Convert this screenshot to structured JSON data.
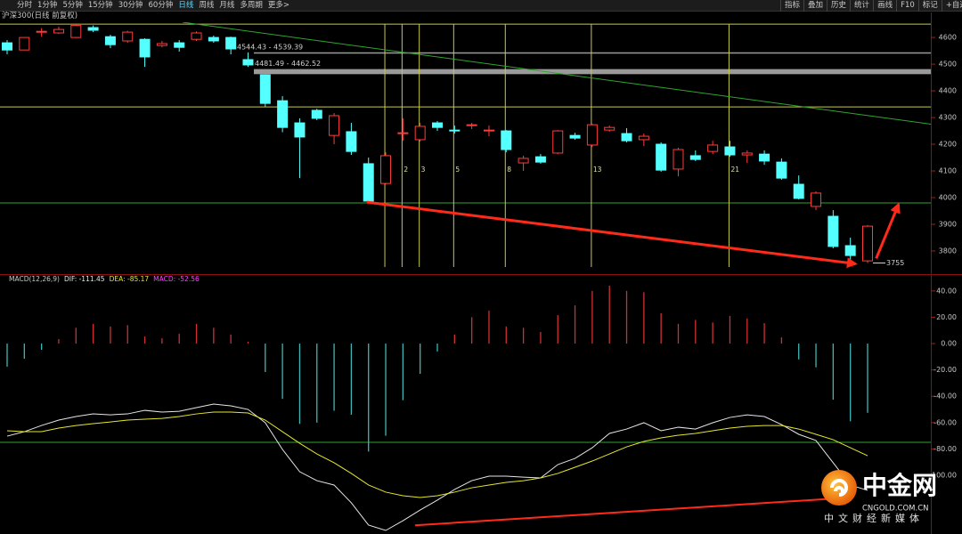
{
  "toolbar": {
    "tabs": [
      "分时",
      "1分钟",
      "5分钟",
      "15分钟",
      "30分钟",
      "60分钟",
      "日线",
      "周线",
      "月线",
      "多周期",
      "更多>"
    ],
    "active_tab": 6,
    "tools": [
      "指标",
      "叠加",
      "历史",
      "统计",
      "画线",
      "F10",
      "标记",
      "+自选",
      "返回"
    ]
  },
  "chart_data": [
    {
      "type": "candlestick",
      "title": "沪深300(日线 前复权)",
      "candles": {
        "open": [
          4580,
          4553,
          4620,
          4617,
          4600,
          4637,
          4603,
          4587,
          4593,
          4570,
          4580,
          4593,
          4600,
          4600,
          4517,
          4460,
          4363,
          4280,
          4327,
          4233,
          4247,
          4127,
          4053,
          4240,
          4217,
          4280,
          4253,
          4270,
          4250,
          4250,
          4130,
          4153,
          4167,
          4233,
          4197,
          4253,
          4240,
          4217,
          4200,
          4107,
          4157,
          4173,
          4190,
          4160,
          4163,
          4133,
          4050,
          3967,
          3930,
          3820,
          3763
        ],
        "high": [
          4590,
          4600,
          4635,
          4640,
          4650,
          4645,
          4610,
          4625,
          4597,
          4587,
          4590,
          4623,
          4607,
          4603,
          4544,
          4462,
          4380,
          4297,
          4333,
          4317,
          4280,
          4150,
          4170,
          4297,
          4280,
          4287,
          4270,
          4280,
          4270,
          4253,
          4157,
          4163,
          4253,
          4243,
          4277,
          4270,
          4260,
          4240,
          4207,
          4187,
          4177,
          4213,
          4213,
          4177,
          4177,
          4147,
          4083,
          4023,
          3953,
          3850,
          3897
        ],
        "low": [
          4537,
          4553,
          4603,
          4613,
          4598,
          4620,
          4560,
          4580,
          4490,
          4563,
          4547,
          4587,
          4580,
          4537,
          4490,
          4340,
          4245,
          4073,
          4290,
          4200,
          4160,
          3983,
          4050,
          4213,
          4210,
          4250,
          4240,
          4257,
          4230,
          4170,
          4100,
          4127,
          4163,
          4217,
          4190,
          4247,
          4207,
          4193,
          4097,
          4080,
          4137,
          4163,
          4153,
          4130,
          4123,
          4067,
          3993,
          3953,
          3810,
          3757.09,
          3755
        ],
        "close": [
          4553,
          4600,
          4623,
          4630,
          4645,
          4627,
          4573,
          4620,
          4527,
          4577,
          4563,
          4617,
          4587,
          4557,
          4497,
          4353,
          4263,
          4227,
          4297,
          4307,
          4173,
          3987,
          4157,
          4243,
          4267,
          4263,
          4250,
          4273,
          4253,
          4180,
          4147,
          4133,
          4250,
          4223,
          4273,
          4263,
          4213,
          4230,
          4103,
          4180,
          4143,
          4197,
          4160,
          4167,
          4137,
          4073,
          3997,
          4017,
          3817,
          3783,
          3893
        ]
      },
      "up_color": "#ff3c3c",
      "down_color": "#54ffff",
      "ylim": [
        3740,
        4657
      ],
      "yticks": [
        3800,
        3900,
        4000,
        4100,
        4200,
        4300,
        4400,
        4500,
        4600
      ],
      "gaps": [
        {
          "label": "4544.43 - 4539.39",
          "top": 4544.43,
          "bottom": 4539.39,
          "color": "#9a9a9a"
        },
        {
          "label": "4481.49 - 4462.52",
          "top": 4481.49,
          "bottom": 4462.52,
          "color": "#9a9a9a"
        }
      ],
      "horizontal_lines": [
        {
          "value": 4650,
          "color": "#c8c84a"
        },
        {
          "value": 4340,
          "color": "#c8c84a"
        },
        {
          "value": 3980,
          "color": "#2fa52f"
        }
      ],
      "trend_lines": [
        {
          "color": "#2fa52f",
          "width": 1,
          "arrow": false,
          "points": [
            [
              10.2,
              4657
            ],
            [
              53.7,
              4275
            ]
          ]
        },
        {
          "color": "#ff2a1a",
          "width": 3,
          "arrow": true,
          "points": [
            [
              20.9,
              3983
            ],
            [
              49.3,
              3752
            ]
          ]
        },
        {
          "color": "#ff2a1a",
          "width": 3,
          "arrow": true,
          "points": [
            [
              50.5,
              3772
            ],
            [
              51.8,
              3975
            ]
          ]
        }
      ],
      "fibonacci": {
        "labels": [
          1,
          2,
          3,
          5,
          8,
          13,
          21
        ],
        "color": "#c8c84a"
      }
    },
    {
      "type": "macd",
      "title": "MACD(12,26,9)",
      "histogram": {
        "name": "MACD: -52.56",
        "color": "#ff40ff",
        "positive_color": "#d03030",
        "negative_color": "#3fb7b7",
        "values": [
          -17.6,
          -11.5,
          -4.7,
          3.4,
          12,
          15,
          13,
          14,
          5.4,
          4,
          7.4,
          15,
          12,
          6.8,
          1.4,
          -21.6,
          -42,
          -61,
          -60,
          -51,
          -54,
          -82,
          -70,
          -43,
          -23,
          -6,
          6.8,
          20,
          25,
          13,
          12,
          8.8,
          21.6,
          29,
          40,
          44,
          40,
          39,
          23,
          15,
          18,
          16,
          21,
          19,
          15.5,
          4.7,
          -12,
          -18,
          -42.6,
          -59,
          -52.56
        ]
      },
      "series": [
        {
          "name": "DIF: -111.45",
          "color": "#e6e6e6",
          "values": [
            -70.3,
            -66.9,
            -62.2,
            -58.1,
            -55.4,
            -53.4,
            -54.1,
            -53.4,
            -50.7,
            -52.0,
            -51.4,
            -48.6,
            -45.9,
            -47.3,
            -50.0,
            -60.1,
            -80.4,
            -97.3,
            -104.1,
            -107.4,
            -120.9,
            -137.8,
            -141.9,
            -134.5,
            -126.4,
            -118.9,
            -110.8,
            -104.1,
            -100.7,
            -100.7,
            -101.4,
            -102.0,
            -91.9,
            -87.2,
            -79.1,
            -68.2,
            -64.9,
            -60.1,
            -66.2,
            -63.5,
            -64.9,
            -60.1,
            -56.1,
            -54.1,
            -55.4,
            -61.5,
            -68.9,
            -73.6,
            -90.5,
            -107.4,
            -111.45
          ]
        },
        {
          "name": "DEA: -85.17",
          "color": "#e6e62e",
          "values": [
            -66.2,
            -66.9,
            -66.9,
            -64.2,
            -62.2,
            -60.8,
            -59.5,
            -58.1,
            -57.4,
            -56.8,
            -55.4,
            -53.4,
            -52.0,
            -52.0,
            -52.7,
            -58.1,
            -66.9,
            -75.7,
            -83.8,
            -90.5,
            -98.6,
            -107.4,
            -112.8,
            -115.5,
            -116.9,
            -115.5,
            -112.8,
            -109.5,
            -107.4,
            -105.4,
            -104.1,
            -102.0,
            -98.6,
            -93.9,
            -89.2,
            -83.8,
            -78.4,
            -74.3,
            -71.6,
            -69.6,
            -68.2,
            -66.2,
            -64.2,
            -62.8,
            -62.2,
            -62.2,
            -64.9,
            -68.9,
            -73.0,
            -79.1,
            -85.17
          ]
        }
      ],
      "ylim": [
        -144.6,
        51.4
      ],
      "yticks": [
        {
          "value": 40,
          "label": "40.00"
        },
        {
          "value": 20,
          "label": "20.00"
        },
        {
          "value": 0,
          "label": "0.00"
        },
        {
          "value": -20,
          "label": "-20.00"
        },
        {
          "value": -40,
          "label": "-40.00"
        },
        {
          "value": -60,
          "label": "-60.00"
        },
        {
          "value": -80,
          "label": "-80.00"
        },
        {
          "value": -100,
          "label": "-100.00"
        }
      ],
      "horizontal_lines": [
        {
          "value": -75,
          "color": "#2fa52f"
        }
      ],
      "trend_lines": [
        {
          "color": "#ff2a1a",
          "width": 2,
          "arrow": false,
          "points": [
            [
              23.7,
              -138
            ],
            [
              48.3,
              -117.5
            ]
          ]
        }
      ]
    }
  ],
  "watermark": {
    "name": "中金网",
    "site": "CNGOLD.COM.CN",
    "tagline": "中文财经新媒体"
  }
}
